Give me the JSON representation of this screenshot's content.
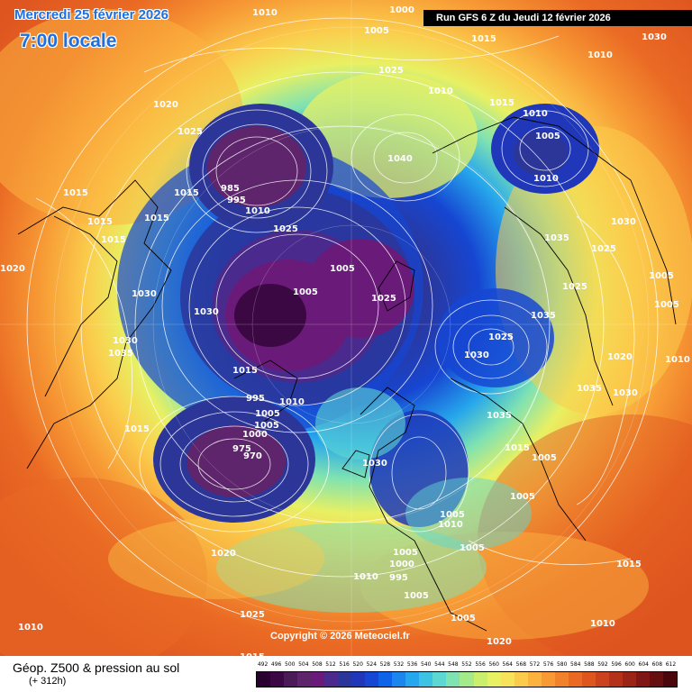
{
  "header": {
    "date": "Mercredi 25 février 2026",
    "time": "7:00 locale",
    "run": "Run GFS 6 Z du Jeudi 12 février 2026"
  },
  "copyright": "Copyright © 2026 Meteociel.fr",
  "footer": {
    "title": "Géop. Z500 & pression au sol",
    "subtitle": "(+ 312h)"
  },
  "legend": {
    "labels": [
      "492",
      "496",
      "500",
      "504",
      "508",
      "512",
      "516",
      "520",
      "524",
      "528",
      "532",
      "536",
      "540",
      "544",
      "548",
      "552",
      "556",
      "560",
      "564",
      "568",
      "572",
      "576",
      "580",
      "584",
      "588",
      "592",
      "596",
      "600",
      "604",
      "608",
      "612"
    ],
    "colors": [
      "#2a0030",
      "#3c0844",
      "#4b1a58",
      "#5e246c",
      "#6a1b79",
      "#4a2a8c",
      "#2c3699",
      "#1f37b8",
      "#1646d2",
      "#0e63e8",
      "#1a86ee",
      "#26a6ec",
      "#3ec2e4",
      "#5dd7d2",
      "#7fe2b2",
      "#a4ea8a",
      "#c9ef6c",
      "#e8f063",
      "#f7e35a",
      "#fbcc4c",
      "#fbb23f",
      "#f79a35",
      "#f2812b",
      "#ea6a24",
      "#de5520",
      "#cc421d",
      "#b5321a",
      "#9c2417",
      "#811714",
      "#660e10",
      "#4a060a"
    ]
  },
  "pressure_labels": [
    "1010",
    "1000",
    "1005",
    "1015",
    "1030",
    "1025",
    "1040",
    "1010",
    "1015",
    "1010",
    "1005",
    "1010",
    "1010",
    "1015",
    "985",
    "995",
    "1010",
    "1025",
    "1015",
    "1015",
    "1015",
    "1020",
    "1025",
    "1015",
    "1020",
    "1030",
    "1030",
    "1005",
    "1030",
    "1005",
    "1025",
    "1030",
    "1025",
    "1035",
    "1035",
    "1025",
    "1020",
    "1030",
    "1035",
    "1005",
    "1005",
    "1015",
    "1015",
    "995",
    "1010",
    "1005",
    "1030",
    "1005",
    "1000",
    "1005",
    "975",
    "970",
    "1025",
    "1030",
    "1035",
    "1035",
    "1015",
    "1005",
    "1005",
    "1010",
    "1005",
    "1005",
    "1000",
    "1005",
    "1020",
    "1010",
    "995",
    "1005",
    "1025",
    "1015",
    "1010",
    "1020",
    "1010",
    "1015",
    "1010"
  ]
}
